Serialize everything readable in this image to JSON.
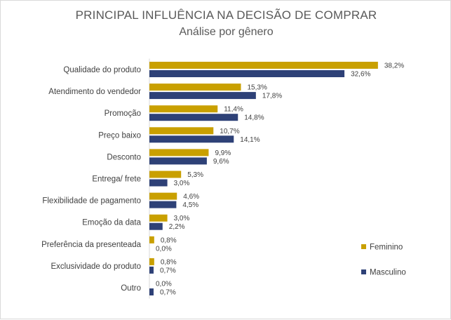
{
  "chart_data": {
    "type": "bar",
    "orientation": "horizontal",
    "title": "PRINCIPAL INFLUÊNCIA NA DECISÃO DE COMPRAR",
    "subtitle": "Análise por gênero",
    "categories": [
      "Qualidade do produto",
      "Atendimento do vendedor",
      "Promoção",
      "Preço baixo",
      "Desconto",
      "Entrega/ frete",
      "Flexibilidade de pagamento",
      "Emoção da data",
      "Preferência da presenteada",
      "Exclusividade do produto",
      "Outro"
    ],
    "series": [
      {
        "name": "Feminino",
        "color": "#c9a000",
        "values": [
          38.2,
          15.3,
          11.4,
          10.7,
          9.9,
          5.3,
          4.6,
          3.0,
          0.8,
          0.8,
          0.0
        ],
        "labels": [
          "38,2%",
          "15,3%",
          "11,4%",
          "10,7%",
          "9,9%",
          "5,3%",
          "4,6%",
          "3,0%",
          "0,8%",
          "0,8%",
          "0,0%"
        ]
      },
      {
        "name": "Masculino",
        "color": "#2e4177",
        "values": [
          32.6,
          17.8,
          14.8,
          14.1,
          9.6,
          3.0,
          4.5,
          2.2,
          0.0,
          0.7,
          0.7
        ],
        "labels": [
          "32,6%",
          "17,8%",
          "14,8%",
          "14,1%",
          "9,6%",
          "3,0%",
          "4,5%",
          "2,2%",
          "0,0%",
          "0,7%",
          "0,7%"
        ]
      }
    ],
    "xlim": [
      0,
      40
    ],
    "grid": false,
    "legend_position": "right"
  }
}
